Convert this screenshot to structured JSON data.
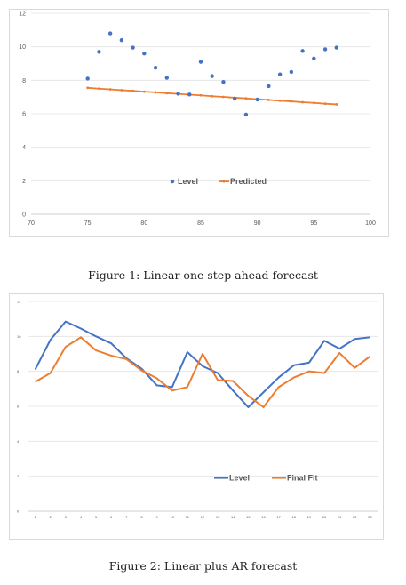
{
  "chart_data": [
    {
      "type": "scatter",
      "title": "",
      "xlabel": "",
      "ylabel": "",
      "xlim": [
        70,
        100
      ],
      "ylim": [
        0,
        12
      ],
      "xticks": [
        70,
        75,
        80,
        85,
        90,
        95,
        100
      ],
      "yticks": [
        0,
        2,
        4,
        6,
        8,
        10,
        12
      ],
      "grid": true,
      "legend": "bottom-center",
      "series": [
        {
          "name": "Level",
          "style": "markers",
          "color": "#4472c4",
          "x": [
            75,
            76,
            77,
            78,
            79,
            80,
            81,
            82,
            83,
            84,
            85,
            86,
            87,
            88,
            89,
            90,
            91,
            92,
            93,
            94,
            95,
            96,
            97
          ],
          "y": [
            8.1,
            9.7,
            10.8,
            10.4,
            9.95,
            9.6,
            8.75,
            8.15,
            7.2,
            7.15,
            9.1,
            8.25,
            7.9,
            6.9,
            5.95,
            6.85,
            7.65,
            8.35,
            8.5,
            9.75,
            9.3,
            9.85,
            9.95
          ]
        },
        {
          "name": "Predicted",
          "style": "line",
          "color": "#ed7d31",
          "x": [
            75,
            76,
            77,
            78,
            79,
            80,
            81,
            82,
            83,
            84,
            85,
            86,
            87,
            88,
            89,
            90,
            91,
            92,
            93,
            94,
            95,
            96,
            97
          ],
          "y": [
            7.55,
            7.5,
            7.46,
            7.41,
            7.37,
            7.32,
            7.28,
            7.23,
            7.19,
            7.14,
            7.1,
            7.05,
            7.01,
            6.96,
            6.92,
            6.87,
            6.83,
            6.78,
            6.74,
            6.69,
            6.65,
            6.6,
            6.56
          ]
        }
      ]
    },
    {
      "type": "line",
      "title": "",
      "xlabel": "",
      "ylabel": "",
      "ylim": [
        0,
        12
      ],
      "yticks": [
        0,
        2,
        4,
        6,
        8,
        10,
        12
      ],
      "categories": [
        "1",
        "2",
        "3",
        "4",
        "5",
        "6",
        "7",
        "8",
        "9",
        "10",
        "11",
        "12",
        "13",
        "14",
        "15",
        "16",
        "17",
        "18",
        "19",
        "20",
        "21",
        "22",
        "23"
      ],
      "grid": true,
      "legend": "bottom-center",
      "series": [
        {
          "name": "Level",
          "color": "#4472c4",
          "values": [
            8.1,
            9.8,
            10.85,
            10.45,
            10.0,
            9.6,
            8.75,
            8.15,
            7.2,
            7.1,
            9.1,
            8.3,
            7.9,
            6.9,
            5.95,
            6.8,
            7.65,
            8.35,
            8.5,
            9.75,
            9.3,
            9.85,
            9.95
          ]
        },
        {
          "name": "Final Fit",
          "color": "#ed7d31",
          "values": [
            7.4,
            7.9,
            9.4,
            9.95,
            9.2,
            8.9,
            8.7,
            8.05,
            7.6,
            6.9,
            7.1,
            9.0,
            7.5,
            7.45,
            6.6,
            5.95,
            7.1,
            7.65,
            8.0,
            7.9,
            9.05,
            8.2,
            8.85
          ]
        }
      ]
    }
  ],
  "captions": {
    "figure1": "Figure 1:  Linear one step ahead forecast",
    "figure2": "Figure 2:  Linear plus AR forecast"
  }
}
